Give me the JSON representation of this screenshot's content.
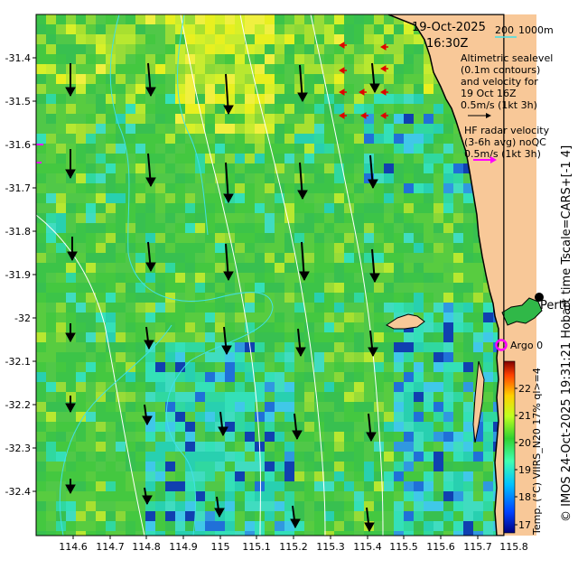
{
  "map": {
    "date": "19-Oct-2025",
    "time": "16:30Z",
    "scale_label": "200",
    "depth_label": "1000m",
    "altimetric_lines": [
      "Altimetric sealevel",
      "(0.1m contours)",
      "and velocity for",
      "19 Oct 16Z",
      "0.5m/s (1kt 3h)"
    ],
    "hf_lines": [
      "HF radar velocity",
      "(3-6h avg) noQC",
      "0.5m/s (1kt 3h)"
    ],
    "city_label": "Perth",
    "argo_label": "Argo 0",
    "side_credit": "© IMOS 24-Oct-2025 19:31:21 Hobart time Tscale=CARS+[-1 4]",
    "colorbar_label": "Temp. (°C) VIIRS_N20 17% ql>=4",
    "lat_ticks": [
      "-31.4",
      "-31.5",
      "-31.6",
      "-31.7",
      "-31.8",
      "-31.9",
      "-32",
      "-32.1",
      "-32.2",
      "-32.3",
      "-32.4"
    ],
    "lon_ticks": [
      "114.6",
      "114.7",
      "114.8",
      "114.9",
      "115",
      "115.1",
      "115.2",
      "115.3",
      "115.4",
      "115.5",
      "115.6",
      "115.7",
      "115.8"
    ],
    "colorbar_ticks": [
      "17",
      "18",
      "19",
      "20",
      "21",
      "22"
    ],
    "colors": {
      "land": "#f8c898",
      "contour": "#ffffff",
      "depth_contour": "#40e0e8",
      "hf_arrow": "#e00000",
      "argo": "#ff00ff"
    }
  }
}
